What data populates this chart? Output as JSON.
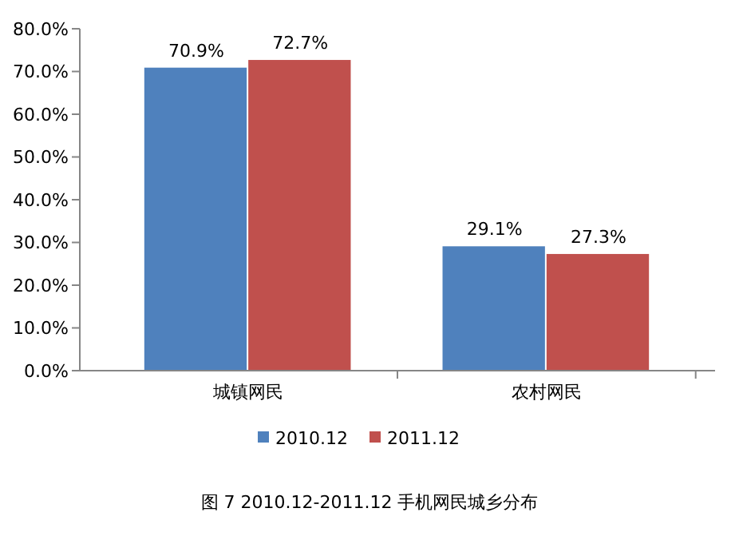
{
  "chart_data": {
    "type": "bar",
    "title": "图 7 2010.12-2011.12 手机网民城乡分布",
    "categories": [
      "城镇网民",
      "农村网民"
    ],
    "series": [
      {
        "name": "2010.12",
        "color": "#4f81bd",
        "values": [
          70.9,
          29.1
        ],
        "value_labels": [
          "70.9%",
          "29.1%"
        ]
      },
      {
        "name": "2011.12",
        "color": "#c0504d",
        "values": [
          72.7,
          27.3
        ],
        "value_labels": [
          "72.7%",
          "27.3%"
        ]
      }
    ],
    "ylim": [
      0,
      80
    ],
    "yticks": [
      {
        "value": 0,
        "label": "0.0%"
      },
      {
        "value": 10,
        "label": "10.0%"
      },
      {
        "value": 20,
        "label": "20.0%"
      },
      {
        "value": 30,
        "label": "30.0%"
      },
      {
        "value": 40,
        "label": "40.0%"
      },
      {
        "value": 50,
        "label": "50.0%"
      },
      {
        "value": 60,
        "label": "60.0%"
      },
      {
        "value": 70,
        "label": "70.0%"
      },
      {
        "value": 80,
        "label": "80.0%"
      }
    ],
    "legend": "bottom",
    "grid": false
  }
}
